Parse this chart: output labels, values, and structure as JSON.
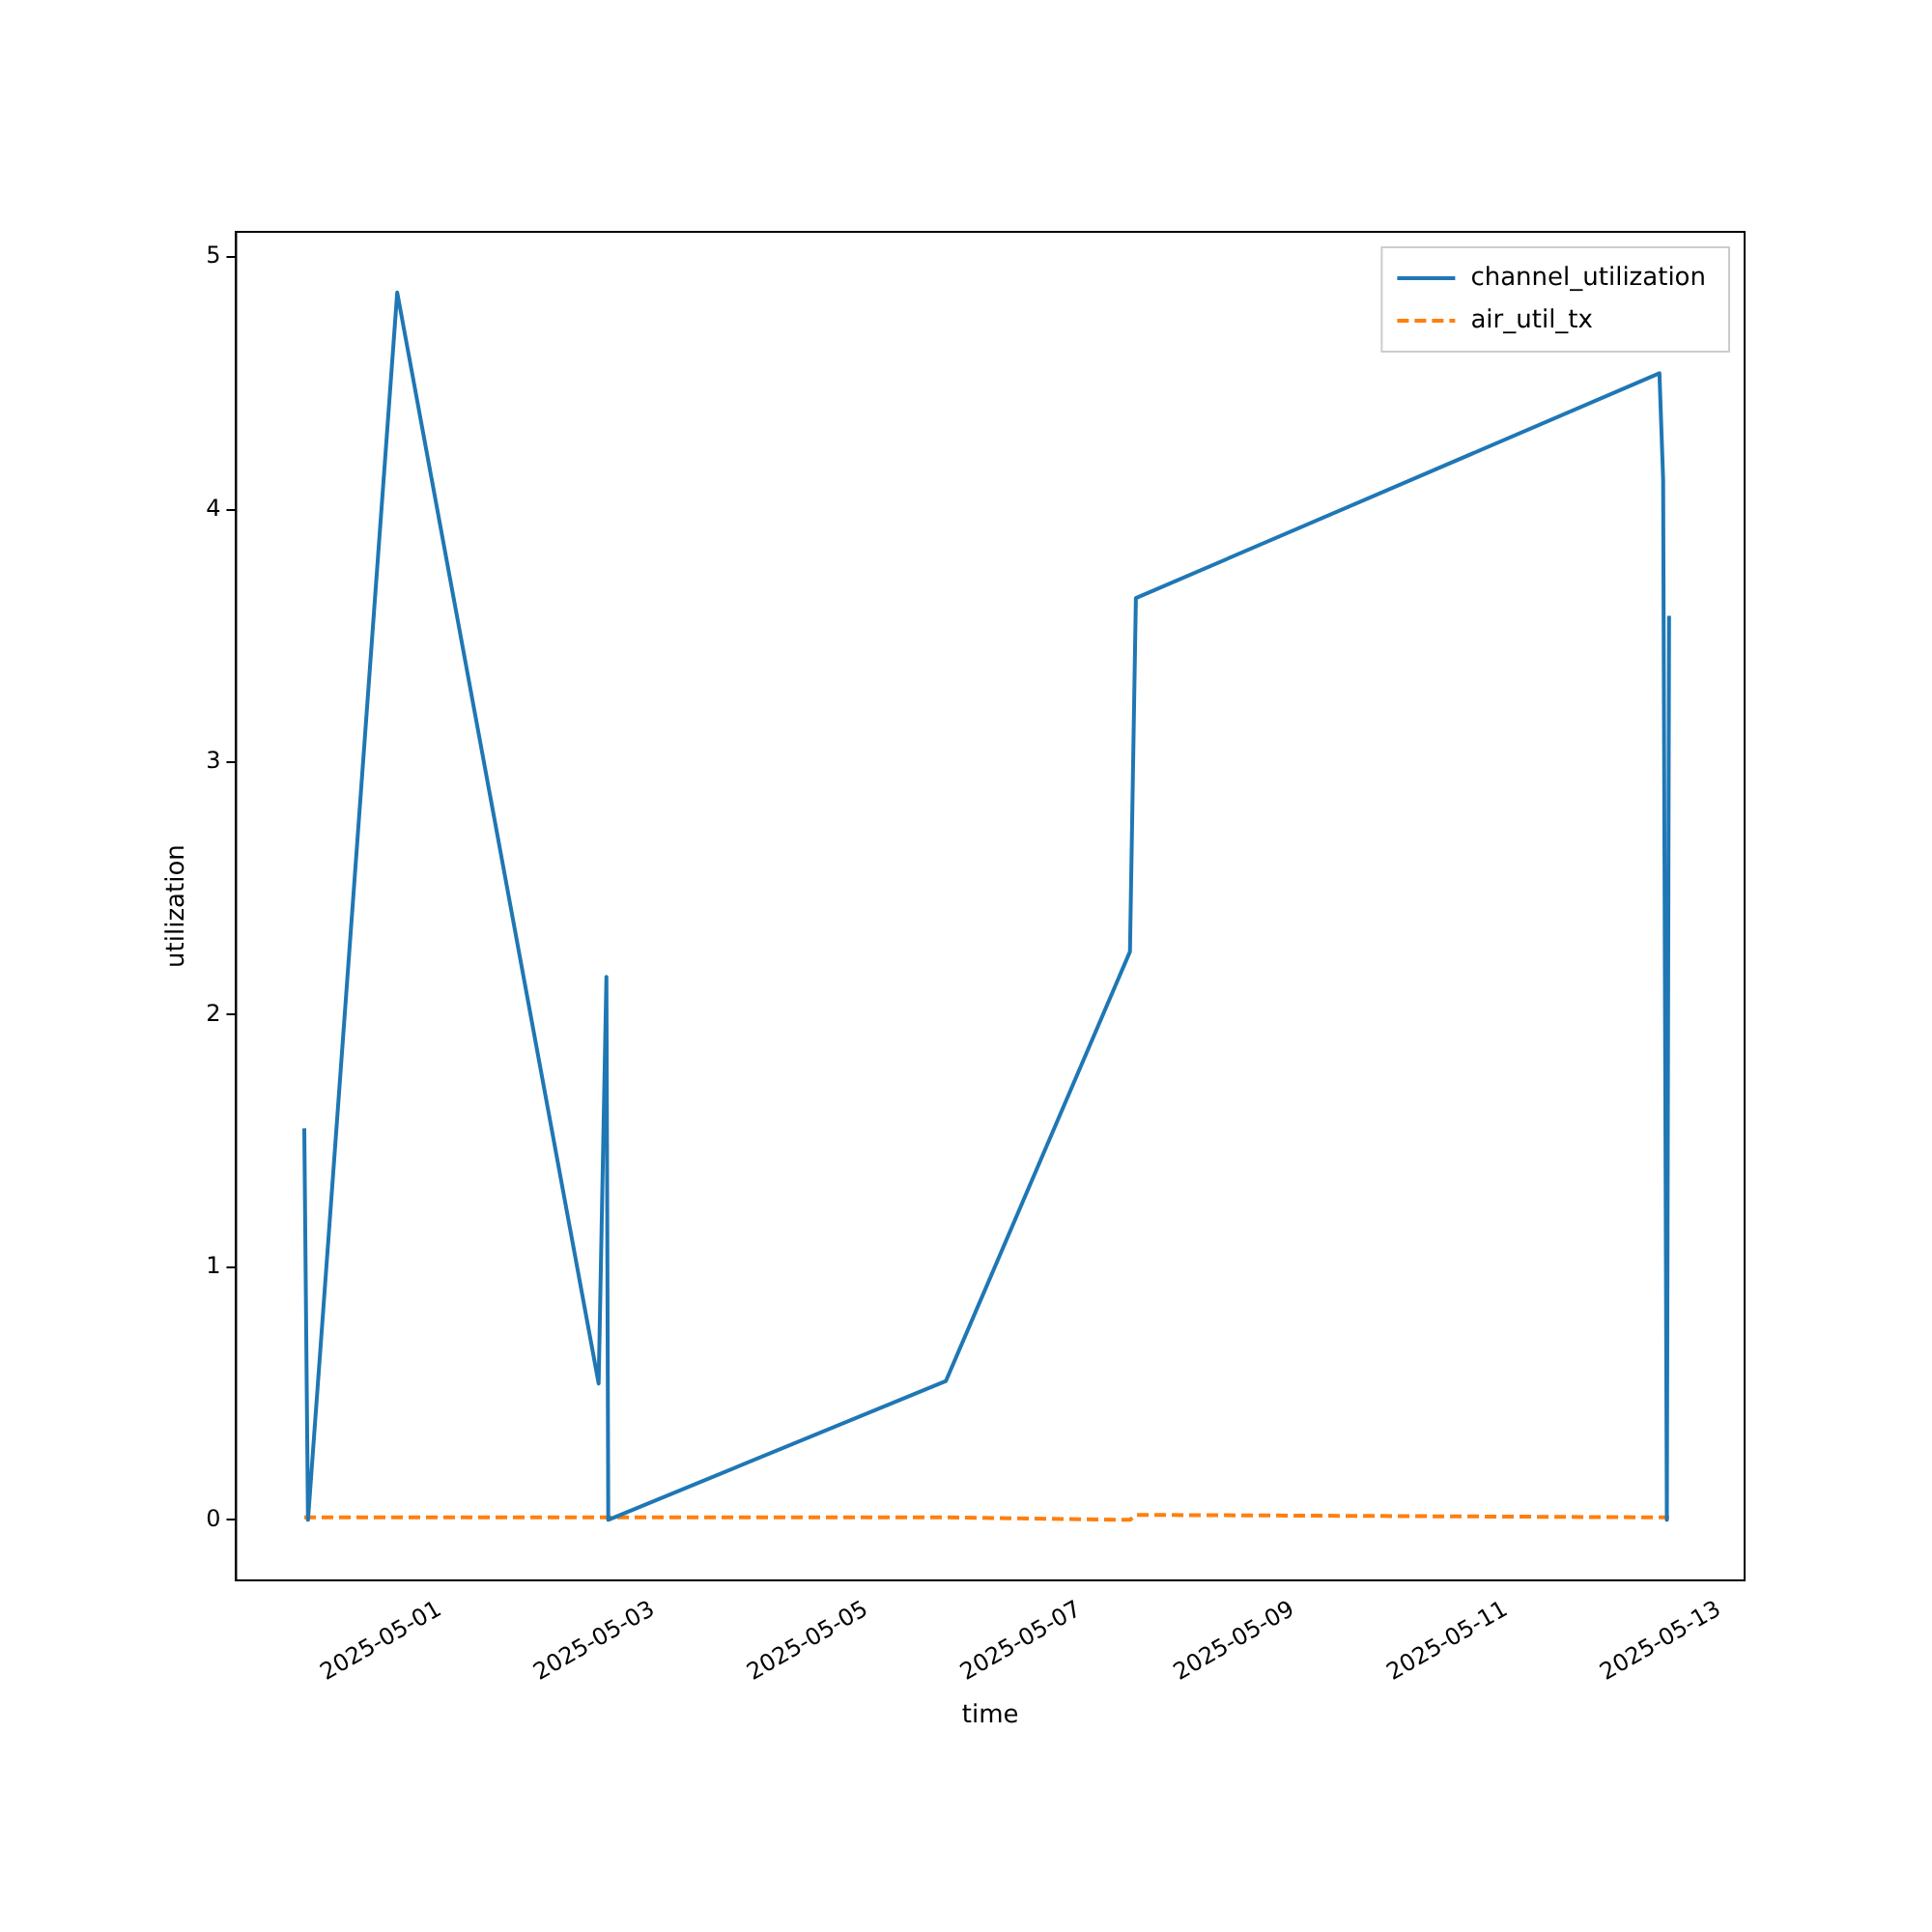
{
  "chart_data": {
    "type": "line",
    "xlabel": "time",
    "ylabel": "utilization",
    "x": [
      "2025-04-29T17:30",
      "2025-04-29T18:20",
      "2025-04-30T14:25",
      "2025-05-02T11:45",
      "2025-05-02T13:30",
      "2025-05-02T13:55",
      "2025-05-05T17:55",
      "2025-05-07T11:20",
      "2025-05-07T12:40",
      "2025-05-12T10:30",
      "2025-05-12T11:20",
      "2025-05-12T12:10",
      "2025-05-12T12:40"
    ],
    "series": [
      {
        "name": "channel_utilization",
        "color": "#1f77b4",
        "line_style": "solid",
        "values": [
          1.55,
          0,
          4.86,
          0.54,
          2.15,
          0,
          0.55,
          2.25,
          3.65,
          4.54,
          4.12,
          0,
          3.58
        ]
      },
      {
        "name": "air_util_tx",
        "color": "#ff7f0e",
        "line_style": "dashed",
        "values": [
          0.01,
          0.01,
          0.01,
          0.01,
          0.01,
          0.01,
          0.01,
          0.0,
          0.02,
          0.01,
          0.01,
          0.01,
          0.01
        ]
      }
    ],
    "xlim": [
      "2025-04-29T02:10",
      "2025-05-13T05:40"
    ],
    "xticks": [
      "2025-05-01",
      "2025-05-03",
      "2025-05-05",
      "2025-05-07",
      "2025-05-09",
      "2025-05-11",
      "2025-05-13"
    ],
    "ylim": [
      -0.24,
      5.1
    ],
    "yticks": [
      0,
      1,
      2,
      3,
      4,
      5
    ],
    "grid": false,
    "legend": "top right",
    "marker": "none"
  }
}
